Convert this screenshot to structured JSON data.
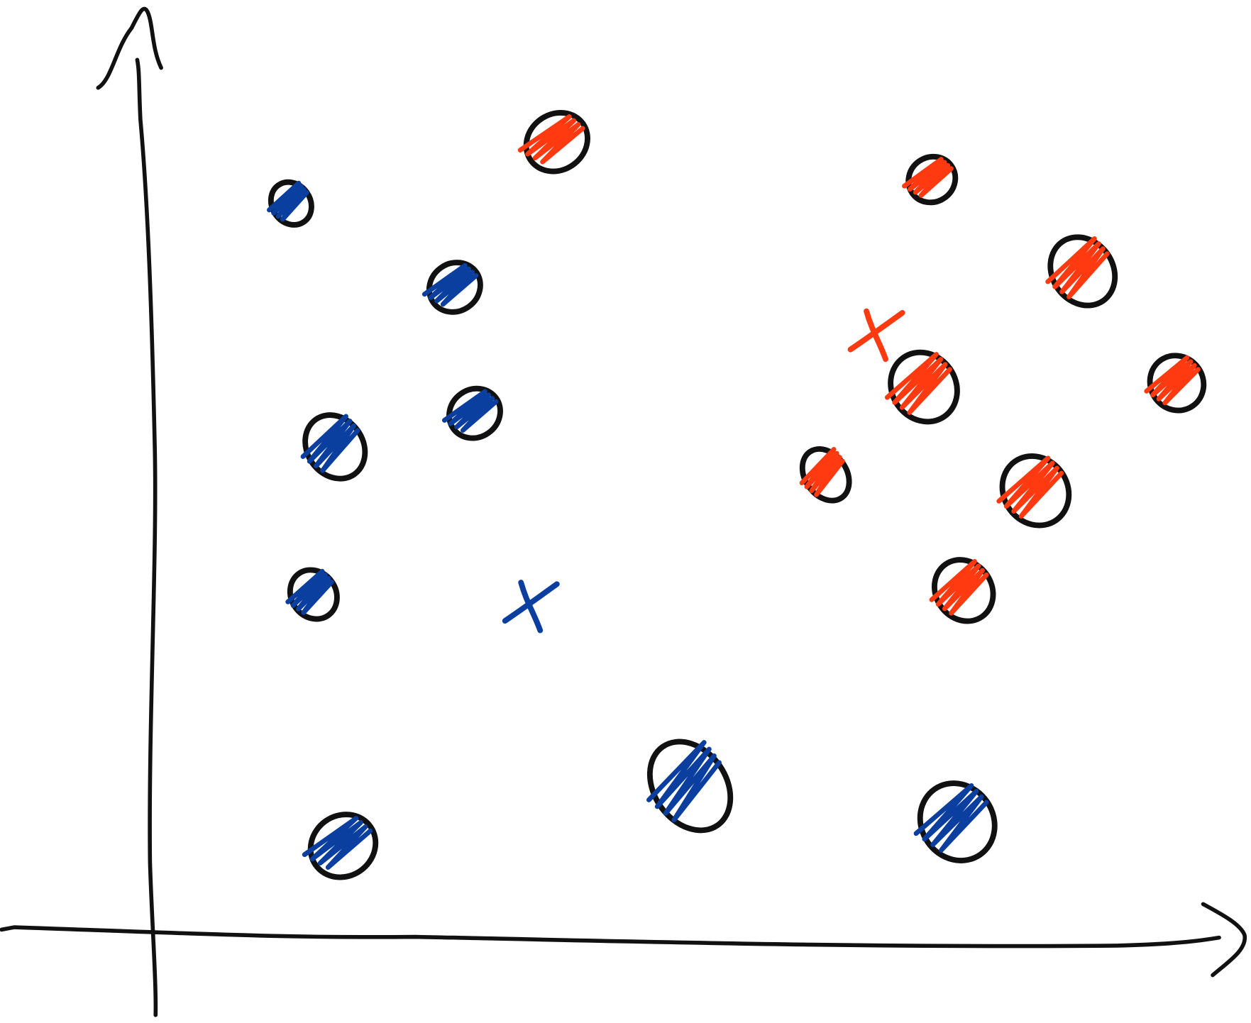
{
  "diagram": {
    "style": "hand-drawn sketch",
    "axes": {
      "stroke_color": "#111111",
      "x_arrow": true,
      "y_arrow": true
    },
    "point_outline_color": "#111111",
    "clusters": [
      {
        "color": "#0a3fa0",
        "point_count": 8,
        "centroid_marker": "x-mark"
      },
      {
        "color": "#ff3a10",
        "point_count": 8,
        "centroid_marker": "x-mark"
      }
    ]
  }
}
